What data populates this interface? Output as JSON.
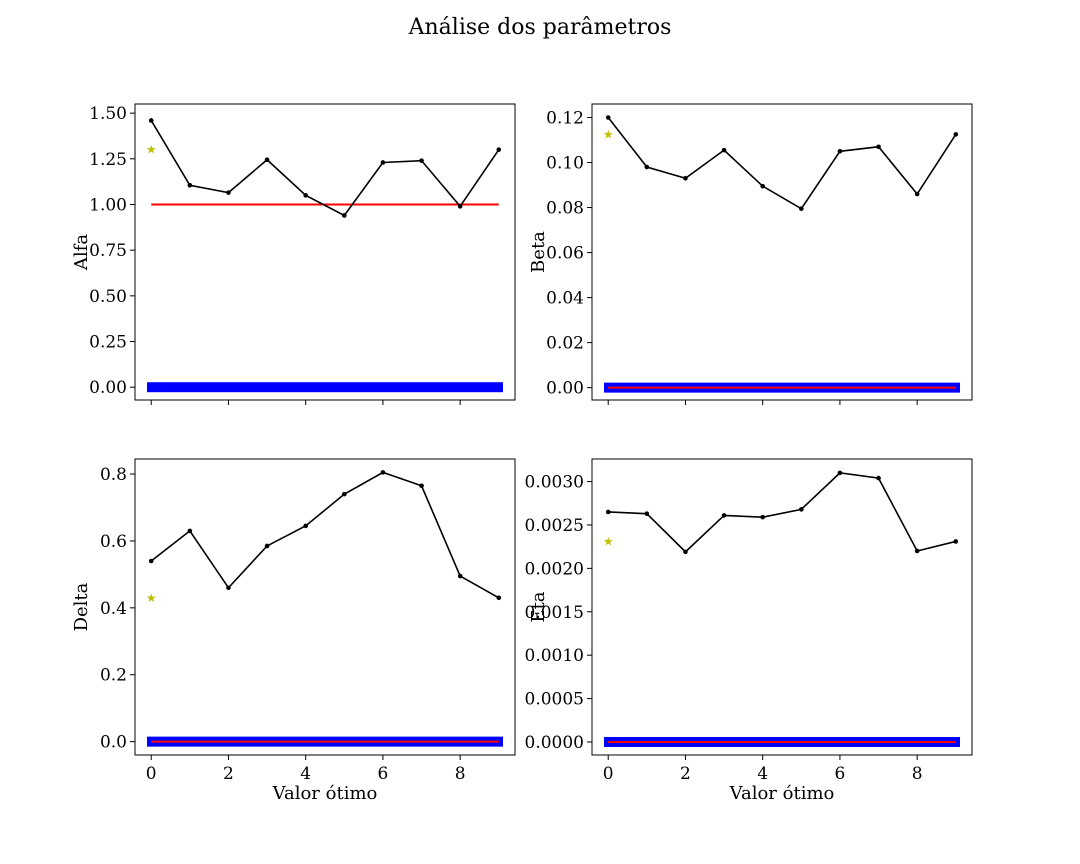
{
  "figure": {
    "suptitle": "Análise dos parâmetros"
  },
  "colors": {
    "series": "#000000",
    "reference": "#ff0000",
    "band": "#0000ff",
    "star": "#bfbf00"
  },
  "chart_data": [
    {
      "type": "line",
      "ylabel": "Alfa",
      "xlabel": "",
      "x": [
        0,
        1,
        2,
        3,
        4,
        5,
        6,
        7,
        8,
        9
      ],
      "ylim": [
        -0.07,
        1.55
      ],
      "yticks": [
        0.0,
        0.25,
        0.5,
        0.75,
        1.0,
        1.25,
        1.5
      ],
      "ytick_labels": [
        "0.00",
        "0.25",
        "0.50",
        "0.75",
        "1.00",
        "1.25",
        "1.50"
      ],
      "series": [
        {
          "values": [
            1.46,
            1.105,
            1.065,
            1.245,
            1.05,
            0.94,
            1.23,
            1.24,
            0.99,
            1.3
          ]
        }
      ],
      "reference_line": {
        "value": 1.0,
        "x_range": [
          0,
          9
        ]
      },
      "band": {
        "value": 0.0
      },
      "star": {
        "x": 0,
        "y": 1.3
      }
    },
    {
      "type": "line",
      "ylabel": "Beta",
      "xlabel": "",
      "x": [
        0,
        1,
        2,
        3,
        4,
        5,
        6,
        7,
        8,
        9
      ],
      "ylim": [
        -0.0055,
        0.126
      ],
      "yticks": [
        0.0,
        0.02,
        0.04,
        0.06,
        0.08,
        0.1,
        0.12
      ],
      "ytick_labels": [
        "0.00",
        "0.02",
        "0.04",
        "0.06",
        "0.08",
        "0.10",
        "0.12"
      ],
      "series": [
        {
          "values": [
            0.12,
            0.098,
            0.093,
            0.1055,
            0.0895,
            0.0795,
            0.105,
            0.107,
            0.086,
            0.1125
          ]
        }
      ],
      "reference_line": {
        "value": 0.0,
        "x_range": [
          0,
          9
        ]
      },
      "band": {
        "value": 0.0
      },
      "star": {
        "x": 0,
        "y": 0.1125
      }
    },
    {
      "type": "line",
      "ylabel": "Delta",
      "xlabel": "Valor ótimo",
      "x": [
        0,
        1,
        2,
        3,
        4,
        5,
        6,
        7,
        8,
        9
      ],
      "ylim": [
        -0.04,
        0.845
      ],
      "yticks": [
        0.0,
        0.2,
        0.4,
        0.6,
        0.8
      ],
      "ytick_labels": [
        "0.0",
        "0.2",
        "0.4",
        "0.6",
        "0.8"
      ],
      "xticks": [
        0,
        2,
        4,
        6,
        8
      ],
      "xtick_labels": [
        "0",
        "2",
        "4",
        "6",
        "8"
      ],
      "series": [
        {
          "values": [
            0.54,
            0.63,
            0.46,
            0.585,
            0.645,
            0.74,
            0.805,
            0.765,
            0.495,
            0.43
          ]
        }
      ],
      "reference_line": {
        "value": 0.0,
        "x_range": [
          0,
          9
        ]
      },
      "band": {
        "value": 0.0
      },
      "star": {
        "x": 0,
        "y": 0.43
      }
    },
    {
      "type": "line",
      "ylabel": "Eta",
      "xlabel": "Valor ótimo",
      "x": [
        0,
        1,
        2,
        3,
        4,
        5,
        6,
        7,
        8,
        9
      ],
      "ylim": [
        -0.00015,
        0.00326
      ],
      "yticks": [
        0.0,
        0.0005,
        0.001,
        0.0015,
        0.002,
        0.0025,
        0.003
      ],
      "ytick_labels": [
        "0.0000",
        "0.0005",
        "0.0010",
        "0.0015",
        "0.0020",
        "0.0025",
        "0.0030"
      ],
      "xticks": [
        0,
        2,
        4,
        6,
        8
      ],
      "xtick_labels": [
        "0",
        "2",
        "4",
        "6",
        "8"
      ],
      "series": [
        {
          "values": [
            0.00265,
            0.00263,
            0.00219,
            0.00261,
            0.00259,
            0.00268,
            0.0031,
            0.00304,
            0.0022,
            0.00231
          ]
        }
      ],
      "reference_line": {
        "value": 0.0,
        "x_range": [
          0,
          9
        ]
      },
      "band": {
        "value": 0.0
      },
      "star": {
        "x": 0,
        "y": 0.00231
      }
    }
  ]
}
